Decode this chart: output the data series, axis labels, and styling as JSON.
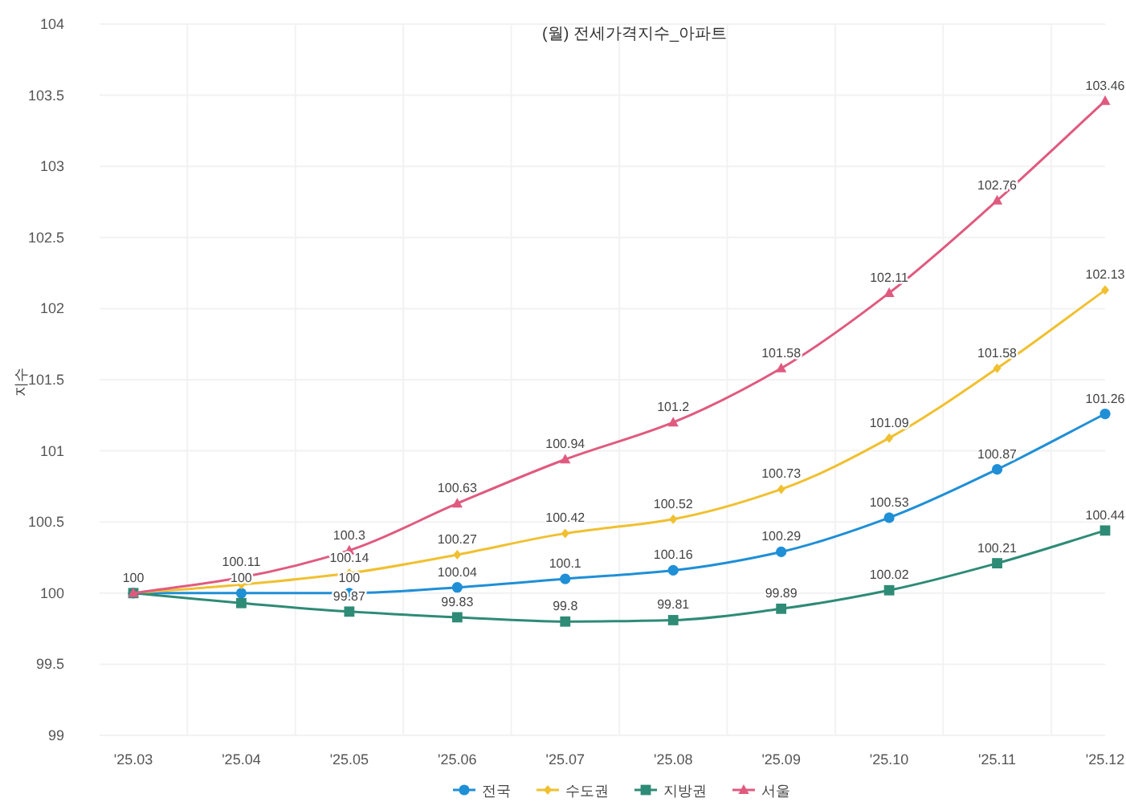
{
  "chart_data": {
    "type": "line",
    "title": "(월) 전세가격지수_아파트",
    "ylabel": "지수",
    "categories": [
      "'25.03",
      "'25.04",
      "'25.05",
      "'25.06",
      "'25.07",
      "'25.08",
      "'25.09",
      "'25.10",
      "'25.11",
      "'25.12"
    ],
    "series": [
      {
        "name": "전국",
        "color": "#1f8fd6",
        "marker": "circle",
        "values": [
          100,
          100,
          100,
          100.04,
          100.1,
          100.16,
          100.29,
          100.53,
          100.87,
          101.26
        ],
        "value_labels": [
          null,
          "100",
          "100",
          "100.04",
          "100.1",
          "100.16",
          "100.29",
          "100.53",
          "100.87",
          "101.26"
        ]
      },
      {
        "name": "수도권",
        "color": "#f0c030",
        "marker": "diamond",
        "values": [
          100,
          100.06,
          100.14,
          100.27,
          100.42,
          100.52,
          100.73,
          101.09,
          101.58,
          102.13
        ],
        "value_labels": [
          null,
          null,
          "100.14",
          "100.27",
          "100.42",
          "100.52",
          "100.73",
          "101.09",
          "101.58",
          "102.13"
        ]
      },
      {
        "name": "지방권",
        "color": "#2e8b76",
        "marker": "square",
        "values": [
          100,
          99.93,
          99.87,
          99.83,
          99.8,
          99.81,
          99.89,
          100.02,
          100.21,
          100.44
        ],
        "value_labels": [
          null,
          null,
          "99.87",
          "99.83",
          "99.8",
          "99.81",
          "99.89",
          "100.02",
          "100.21",
          "100.44"
        ]
      },
      {
        "name": "서울",
        "color": "#e05a7f",
        "marker": "triangle",
        "values": [
          100,
          100.11,
          100.3,
          100.63,
          100.94,
          101.2,
          101.58,
          102.11,
          102.76,
          103.46
        ],
        "value_labels": [
          "100",
          "100.11",
          "100.3",
          "100.63",
          "100.94",
          "101.2",
          "101.58",
          "102.11",
          "102.76",
          "103.46"
        ]
      }
    ],
    "ylim": [
      99,
      104
    ],
    "yticks": [
      99,
      99.5,
      100,
      100.5,
      101,
      101.5,
      102,
      102.5,
      103,
      103.5,
      104
    ],
    "grid": true,
    "legend": "bottom",
    "line_style": "solid"
  }
}
